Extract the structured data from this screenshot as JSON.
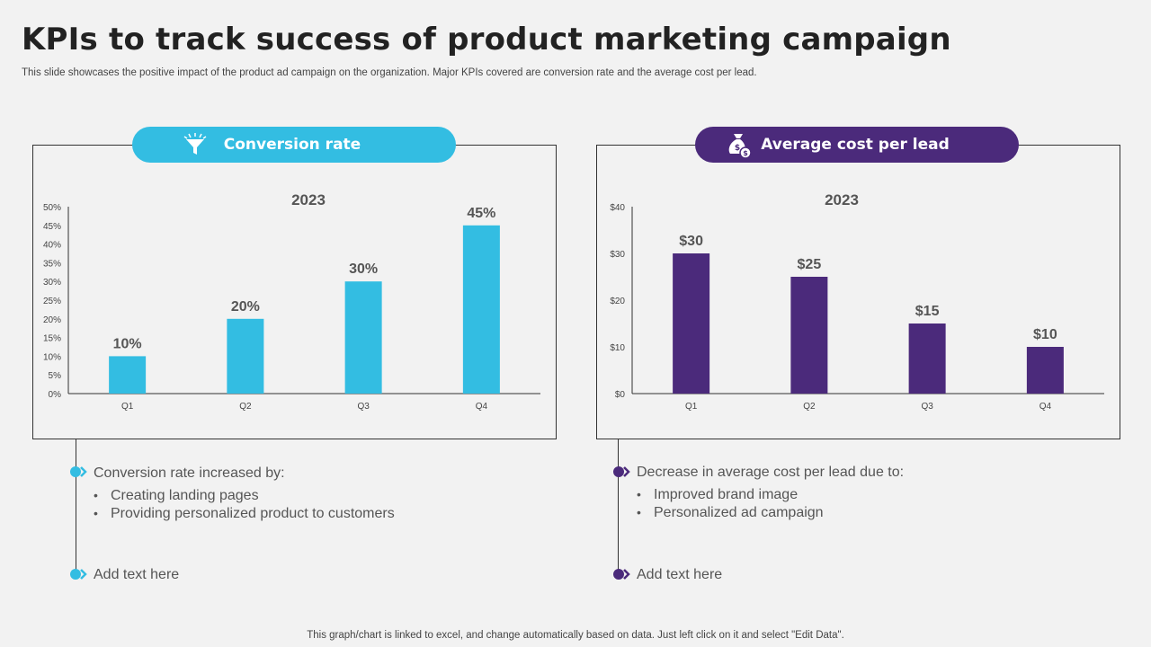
{
  "title": "KPIs to track success of product marketing campaign",
  "subtitle": "This slide showcases the positive impact of the product ad campaign on the organization. Major KPIs covered are conversion rate and the average cost per lead.",
  "colors": {
    "cyan": "#33bde2",
    "purple": "#4b2a7b"
  },
  "left": {
    "pill_label": "Conversion rate",
    "pill_icon": "funnel-icon",
    "heading": "Conversion rate increased by:",
    "bullets": [
      "Creating landing pages",
      "Providing personalized product to  customers"
    ],
    "add_text": "Add text here"
  },
  "right": {
    "pill_label": "Average cost per lead",
    "pill_icon": "money-bag-icon",
    "heading": "Decrease in average cost per lead due to:",
    "bullets": [
      "Improved brand image",
      "Personalized ad campaign"
    ],
    "add_text": "Add text here"
  },
  "footer": "This graph/chart is linked to excel,  and change automatically based on data. Just left click on it and select \"Edit Data\".",
  "chart_data": [
    {
      "type": "bar",
      "title": "2023",
      "categories": [
        "Q1",
        "Q2",
        "Q3",
        "Q4"
      ],
      "values": [
        10,
        20,
        30,
        45
      ],
      "value_labels": [
        "10%",
        "20%",
        "30%",
        "45%"
      ],
      "ylim": [
        0,
        50
      ],
      "yticks": [
        "0%",
        "5%",
        "10%",
        "15%",
        "20%",
        "25%",
        "30%",
        "35%",
        "40%",
        "45%",
        "50%"
      ],
      "color": "#33bde2",
      "xlabel": "",
      "ylabel": ""
    },
    {
      "type": "bar",
      "title": "2023",
      "categories": [
        "Q1",
        "Q2",
        "Q3",
        "Q4"
      ],
      "values": [
        30,
        25,
        15,
        10
      ],
      "value_labels": [
        "$30",
        "$25",
        "$15",
        "$10"
      ],
      "ylim": [
        0,
        40
      ],
      "yticks": [
        "$0",
        "$10",
        "$20",
        "$30",
        "$40"
      ],
      "color": "#4b2a7b",
      "xlabel": "",
      "ylabel": ""
    }
  ]
}
